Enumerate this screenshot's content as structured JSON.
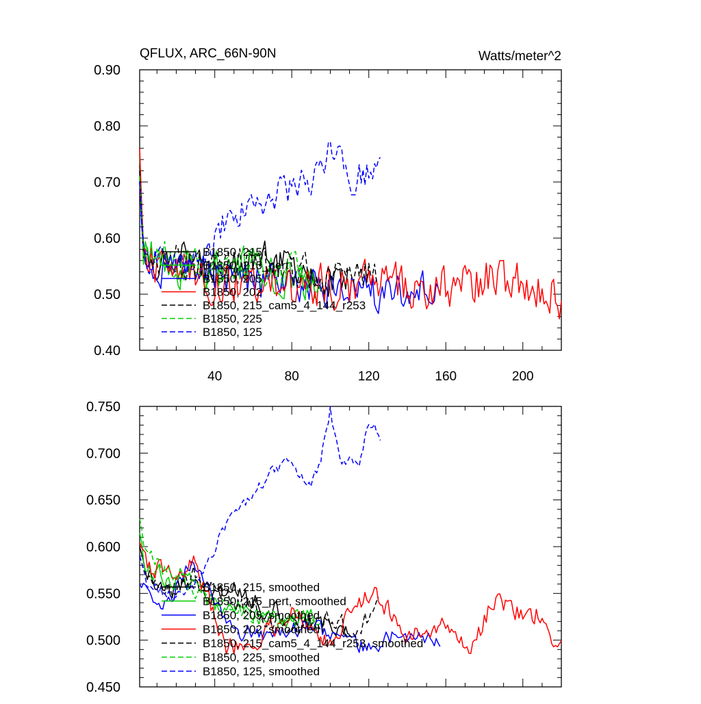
{
  "figure": {
    "title_left": "QFLUX, ARC_66N-90N",
    "title_right": "Watts/meter^2"
  },
  "chart_data": [
    {
      "type": "line",
      "title": "QFLUX, ARC_66N-90N",
      "units": "Watts/meter^2",
      "xlim": [
        1,
        220
      ],
      "ylim": [
        0.4,
        0.9
      ],
      "xticks": [
        40,
        80,
        120,
        160,
        200
      ],
      "xtick_labels": [
        "40",
        "80",
        "120",
        "160",
        "200"
      ],
      "yticks": [
        0.4,
        0.5,
        0.6,
        0.7,
        0.8,
        0.9
      ],
      "ytick_labels": [
        "0.40",
        "0.50",
        "0.60",
        "0.70",
        "0.80",
        "0.90"
      ],
      "legend_position": "lower-left",
      "series": [
        {
          "name": "B1850, 215",
          "color": "#000000",
          "dash": "solid",
          "xmax": 110,
          "anchors": [
            [
              1,
              0.73
            ],
            [
              3,
              0.58
            ],
            [
              10,
              0.56
            ],
            [
              30,
              0.57
            ],
            [
              50,
              0.55
            ],
            [
              70,
              0.56
            ],
            [
              90,
              0.53
            ],
            [
              110,
              0.53
            ]
          ],
          "amp": 0.03
        },
        {
          "name": "B1850, 215_pert",
          "color": "#00cc00",
          "dash": "solid",
          "xmax": 92,
          "anchors": [
            [
              1,
              0.75
            ],
            [
              3,
              0.57
            ],
            [
              20,
              0.55
            ],
            [
              40,
              0.53
            ],
            [
              60,
              0.55
            ],
            [
              80,
              0.53
            ],
            [
              92,
              0.52
            ]
          ],
          "amp": 0.035
        },
        {
          "name": "B1850, 205",
          "color": "#0000ff",
          "dash": "solid",
          "xmax": 157,
          "anchors": [
            [
              1,
              0.7
            ],
            [
              3,
              0.55
            ],
            [
              20,
              0.55
            ],
            [
              60,
              0.52
            ],
            [
              100,
              0.51
            ],
            [
              130,
              0.5
            ],
            [
              157,
              0.53
            ]
          ],
          "amp": 0.03
        },
        {
          "name": "B1850, 202",
          "color": "#ff0000",
          "dash": "solid",
          "xmax": 220,
          "anchors": [
            [
              1,
              0.76
            ],
            [
              3,
              0.57
            ],
            [
              40,
              0.52
            ],
            [
              80,
              0.51
            ],
            [
              120,
              0.52
            ],
            [
              160,
              0.51
            ],
            [
              185,
              0.53
            ],
            [
              200,
              0.52
            ],
            [
              220,
              0.49
            ]
          ],
          "amp": 0.035
        },
        {
          "name": "B1850, 215_cam5_4_144_r253",
          "color": "#000000",
          "dash": "dashed",
          "xmax": 125,
          "anchors": [
            [
              1,
              0.72
            ],
            [
              3,
              0.58
            ],
            [
              30,
              0.55
            ],
            [
              60,
              0.55
            ],
            [
              90,
              0.53
            ],
            [
              110,
              0.52
            ],
            [
              125,
              0.54
            ]
          ],
          "amp": 0.03
        },
        {
          "name": "B1850, 225",
          "color": "#00cc00",
          "dash": "dashed",
          "xmax": 95,
          "anchors": [
            [
              1,
              0.71
            ],
            [
              3,
              0.58
            ],
            [
              30,
              0.55
            ],
            [
              60,
              0.54
            ],
            [
              95,
              0.53
            ]
          ],
          "amp": 0.03
        },
        {
          "name": "B1850, 125",
          "color": "#0000ff",
          "dash": "dashed",
          "xmax": 126,
          "anchors": [
            [
              1,
              0.7
            ],
            [
              3,
              0.57
            ],
            [
              25,
              0.55
            ],
            [
              35,
              0.56
            ],
            [
              45,
              0.63
            ],
            [
              60,
              0.66
            ],
            [
              80,
              0.69
            ],
            [
              95,
              0.72
            ],
            [
              100,
              0.77
            ],
            [
              110,
              0.7
            ],
            [
              120,
              0.72
            ],
            [
              126,
              0.76
            ]
          ],
          "amp": 0.025
        }
      ]
    },
    {
      "type": "line",
      "title": "",
      "xlim": [
        1,
        220
      ],
      "ylim": [
        0.45,
        0.75
      ],
      "xticks": [
        40,
        80,
        120,
        160,
        200
      ],
      "xtick_labels": [
        "",
        "",
        "",
        "",
        ""
      ],
      "yticks": [
        0.45,
        0.5,
        0.55,
        0.6,
        0.65,
        0.7,
        0.75
      ],
      "ytick_labels": [
        "0.450",
        "0.500",
        "0.550",
        "0.600",
        "0.650",
        "0.700",
        "0.750"
      ],
      "legend_position": "lower-left",
      "series": [
        {
          "name": "B1850, 215, smoothed",
          "color": "#000000",
          "dash": "solid",
          "xmax": 110,
          "anchors": [
            [
              1,
              0.6
            ],
            [
              5,
              0.57
            ],
            [
              15,
              0.555
            ],
            [
              30,
              0.56
            ],
            [
              40,
              0.545
            ],
            [
              50,
              0.555
            ],
            [
              60,
              0.54
            ],
            [
              80,
              0.525
            ],
            [
              100,
              0.52
            ],
            [
              110,
              0.515
            ]
          ],
          "amp": 0.01
        },
        {
          "name": "B1850, 215_pert, smoothed",
          "color": "#00cc00",
          "dash": "solid",
          "xmax": 92,
          "anchors": [
            [
              1,
              0.615
            ],
            [
              5,
              0.575
            ],
            [
              15,
              0.565
            ],
            [
              25,
              0.57
            ],
            [
              40,
              0.54
            ],
            [
              60,
              0.53
            ],
            [
              80,
              0.53
            ],
            [
              92,
              0.53
            ]
          ],
          "amp": 0.01
        },
        {
          "name": "B1850, 205, smoothed",
          "color": "#0000ff",
          "dash": "solid",
          "xmax": 157,
          "anchors": [
            [
              1,
              0.56
            ],
            [
              5,
              0.545
            ],
            [
              15,
              0.54
            ],
            [
              28,
              0.58
            ],
            [
              35,
              0.56
            ],
            [
              50,
              0.51
            ],
            [
              70,
              0.505
            ],
            [
              90,
              0.515
            ],
            [
              120,
              0.49
            ],
            [
              135,
              0.51
            ],
            [
              150,
              0.5
            ],
            [
              157,
              0.495
            ]
          ],
          "amp": 0.008
        },
        {
          "name": "B1850, 202, smoothed",
          "color": "#ff0000",
          "dash": "solid",
          "xmax": 220,
          "anchors": [
            [
              1,
              0.605
            ],
            [
              5,
              0.58
            ],
            [
              20,
              0.575
            ],
            [
              30,
              0.585
            ],
            [
              45,
              0.49
            ],
            [
              60,
              0.5
            ],
            [
              80,
              0.525
            ],
            [
              100,
              0.5
            ],
            [
              122,
              0.555
            ],
            [
              140,
              0.505
            ],
            [
              165,
              0.52
            ],
            [
              172,
              0.48
            ],
            [
              185,
              0.545
            ],
            [
              200,
              0.525
            ],
            [
              210,
              0.53
            ],
            [
              215,
              0.485
            ],
            [
              220,
              0.495
            ]
          ],
          "amp": 0.01
        },
        {
          "name": "B1850, 215_cam5_4_144_r253, smoothed",
          "color": "#000000",
          "dash": "dashed",
          "xmax": 125,
          "anchors": [
            [
              1,
              0.59
            ],
            [
              5,
              0.565
            ],
            [
              20,
              0.555
            ],
            [
              30,
              0.57
            ],
            [
              45,
              0.545
            ],
            [
              60,
              0.535
            ],
            [
              80,
              0.51
            ],
            [
              100,
              0.525
            ],
            [
              115,
              0.505
            ],
            [
              125,
              0.555
            ]
          ],
          "amp": 0.01
        },
        {
          "name": "B1850, 225, smoothed",
          "color": "#00cc00",
          "dash": "dashed",
          "xmax": 95,
          "anchors": [
            [
              1,
              0.63
            ],
            [
              5,
              0.59
            ],
            [
              15,
              0.575
            ],
            [
              30,
              0.555
            ],
            [
              45,
              0.535
            ],
            [
              60,
              0.525
            ],
            [
              80,
              0.52
            ],
            [
              95,
              0.515
            ]
          ],
          "amp": 0.008
        },
        {
          "name": "B1850, 125, smoothed",
          "color": "#0000ff",
          "dash": "dashed",
          "xmax": 126,
          "anchors": [
            [
              1,
              0.59
            ],
            [
              5,
              0.56
            ],
            [
              20,
              0.545
            ],
            [
              30,
              0.56
            ],
            [
              40,
              0.6
            ],
            [
              50,
              0.64
            ],
            [
              60,
              0.655
            ],
            [
              70,
              0.68
            ],
            [
              80,
              0.69
            ],
            [
              90,
              0.665
            ],
            [
              95,
              0.69
            ],
            [
              100,
              0.745
            ],
            [
              105,
              0.69
            ],
            [
              115,
              0.69
            ],
            [
              120,
              0.73
            ],
            [
              126,
              0.72
            ]
          ],
          "amp": 0.006
        }
      ]
    }
  ]
}
